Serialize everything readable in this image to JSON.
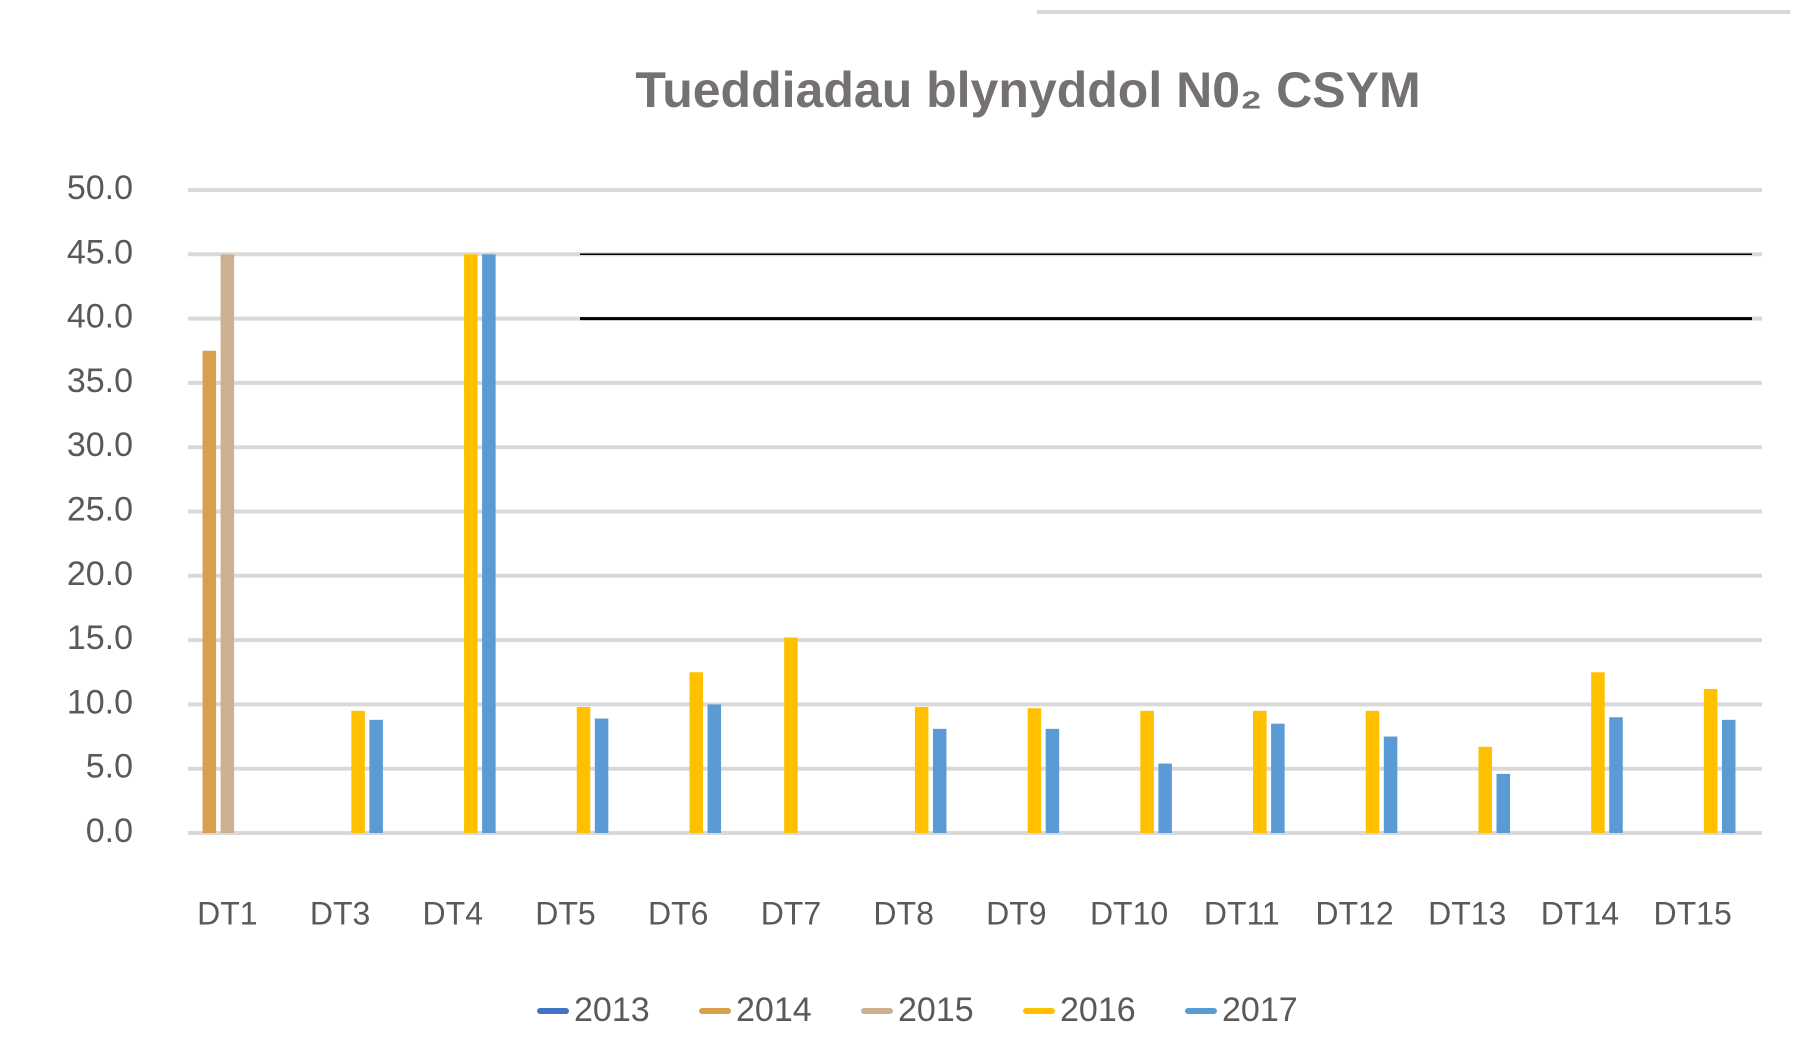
{
  "chart_data": {
    "type": "bar",
    "title": "Tueddiadau blynyddol N0₂ CSYM",
    "categories": [
      "DT1",
      "DT3",
      "DT4",
      "DT5",
      "DT6",
      "DT7",
      "DT8",
      "DT9",
      "DT10",
      "DT11",
      "DT12",
      "DT13",
      "DT14",
      "DT15"
    ],
    "series": [
      {
        "name": "2013",
        "color": "#4472c4",
        "values": [
          null,
          null,
          null,
          null,
          null,
          null,
          null,
          null,
          null,
          null,
          null,
          null,
          null,
          null
        ]
      },
      {
        "name": "2014",
        "color": "#d9a04c",
        "values": [
          37.5,
          null,
          null,
          null,
          null,
          null,
          null,
          null,
          null,
          null,
          null,
          null,
          null,
          null
        ]
      },
      {
        "name": "2015",
        "color": "#cdb092",
        "values": [
          45,
          null,
          null,
          null,
          null,
          null,
          null,
          null,
          null,
          null,
          null,
          null,
          null,
          null
        ]
      },
      {
        "name": "2016",
        "color": "#ffc000",
        "values": [
          null,
          9.5,
          45,
          9.8,
          12.5,
          15.2,
          9.8,
          9.7,
          9.5,
          9.5,
          9.5,
          6.7,
          12.5,
          11.2
        ]
      },
      {
        "name": "2017",
        "color": "#5b9bd5",
        "values": [
          null,
          8.8,
          45,
          8.9,
          10.0,
          null,
          8.1,
          8.1,
          5.4,
          8.5,
          7.5,
          4.6,
          9.0,
          8.8
        ]
      }
    ],
    "reference_lines": [
      40,
      45
    ],
    "ylim": [
      0,
      50
    ],
    "yticks": [
      {
        "value": 0,
        "label": "0.0"
      },
      {
        "value": 5,
        "label": "5.0"
      },
      {
        "value": 10,
        "label": "10.0"
      },
      {
        "value": 15,
        "label": "15.0"
      },
      {
        "value": 20,
        "label": "20.0"
      },
      {
        "value": 25,
        "label": "25.0"
      },
      {
        "value": 30,
        "label": "30.0"
      },
      {
        "value": 35,
        "label": "35.0"
      },
      {
        "value": 40,
        "label": "40.0"
      },
      {
        "value": 45,
        "label": "45.0"
      },
      {
        "value": 50,
        "label": "50.0"
      }
    ],
    "grid": true,
    "legend": "bottom"
  }
}
